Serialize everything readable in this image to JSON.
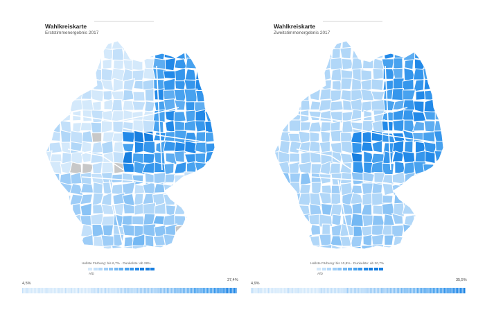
{
  "panels": [
    {
      "title": "Wahlkreiskarte",
      "subtitle": "Erststimmenergebnis 2017",
      "legend_text": "Hellste Färbung: bis 6,7% · Dunkelste: ab 28%",
      "legend_party": "AfD",
      "range_min": "4,5%",
      "range_max": "37,4%"
    },
    {
      "title": "Wahlkreiskarte",
      "subtitle": "Zweitstimmenergebnis 2017",
      "legend_text": "Hellste Färbung: bis 10,8% · Dunkelste: ab 20,7%",
      "legend_party": "AfD",
      "range_min": "4,9%",
      "range_max": "35,5%"
    }
  ],
  "colors": {
    "scale": [
      "#d4e9fb",
      "#c3e0fa",
      "#b1d7f8",
      "#9ecdf7",
      "#8ac3f5",
      "#74b8f3",
      "#5eadf1",
      "#48a2ef",
      "#3596ec",
      "#2289e8",
      "#177edf"
    ],
    "no_data": "#c8c8c8",
    "border": "#ffffff"
  }
}
